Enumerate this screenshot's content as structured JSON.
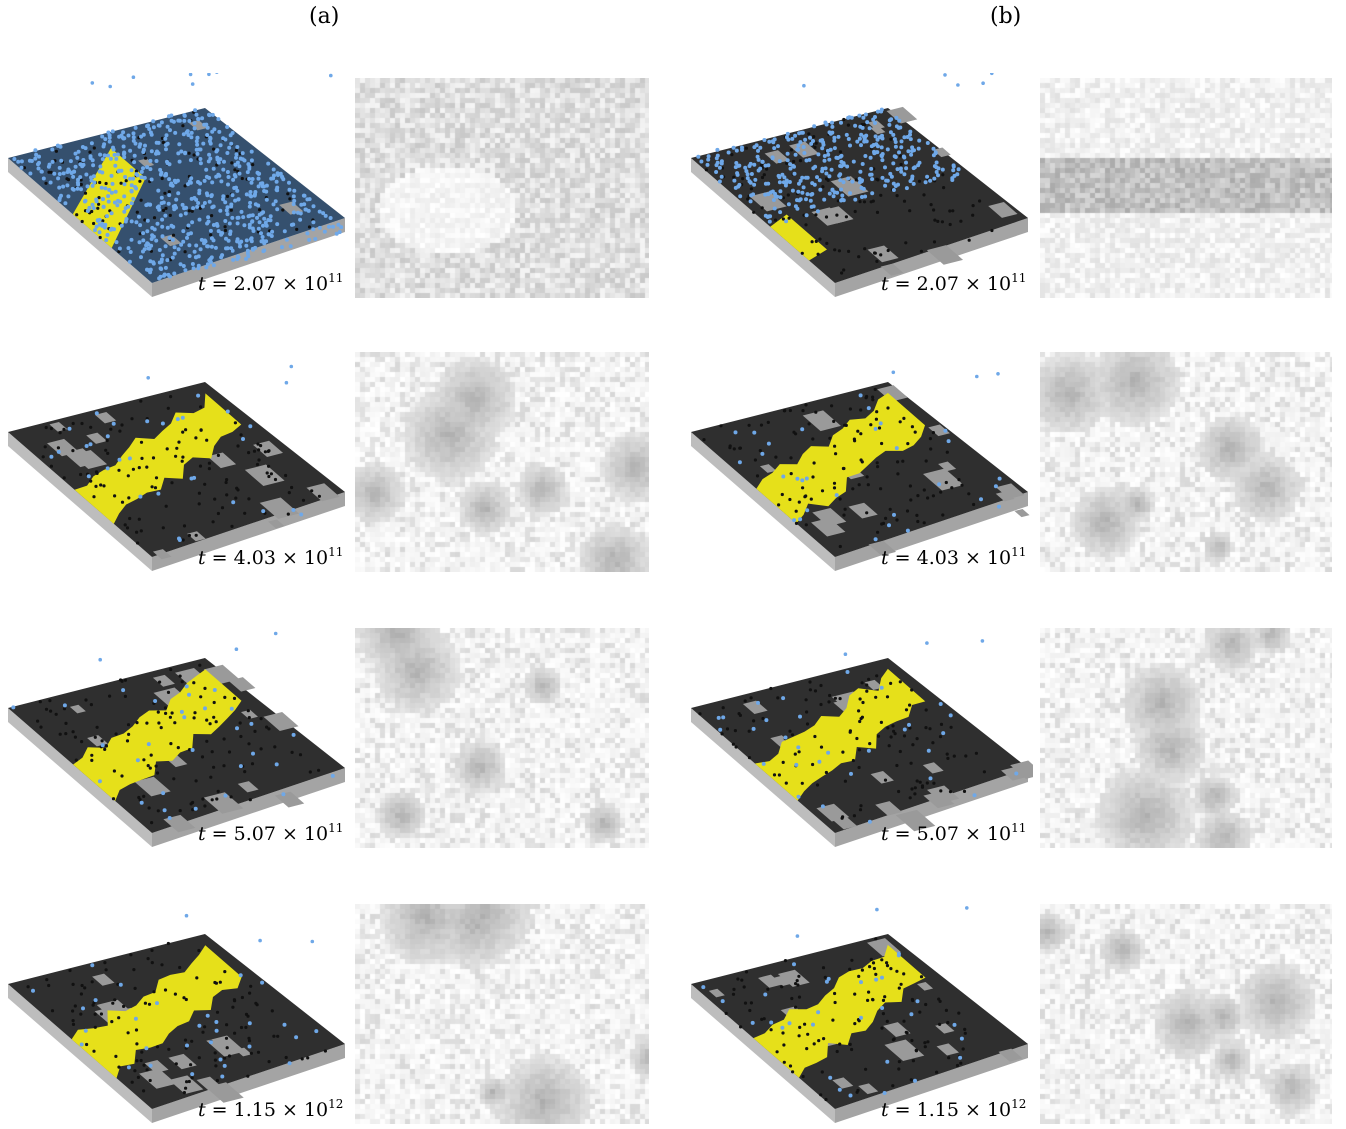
{
  "figure": {
    "panels": [
      {
        "label": "(a)",
        "rows": [
          {
            "t_mant": "2.07",
            "t_exp": "11",
            "stage": 0
          },
          {
            "t_mant": "4.03",
            "t_exp": "11",
            "stage": 1
          },
          {
            "t_mant": "5.07",
            "t_exp": "11",
            "stage": 2
          },
          {
            "t_mant": "1.15",
            "t_exp": "12",
            "stage": 3
          }
        ]
      },
      {
        "label": "(b)",
        "rows": [
          {
            "t_mant": "2.07",
            "t_exp": "11",
            "stage": 0
          },
          {
            "t_mant": "4.03",
            "t_exp": "11",
            "stage": 1
          },
          {
            "t_mant": "5.07",
            "t_exp": "11",
            "stage": 2
          },
          {
            "t_mant": "1.15",
            "t_exp": "12",
            "stage": 3
          }
        ]
      }
    ],
    "colors": {
      "adatom": "#6fa8e8",
      "substrate_top": "#2f2f2f",
      "substrate_side": "#b5b5b5",
      "step_band": "#e6e01a",
      "island_grey": "#9a9a9a"
    }
  }
}
